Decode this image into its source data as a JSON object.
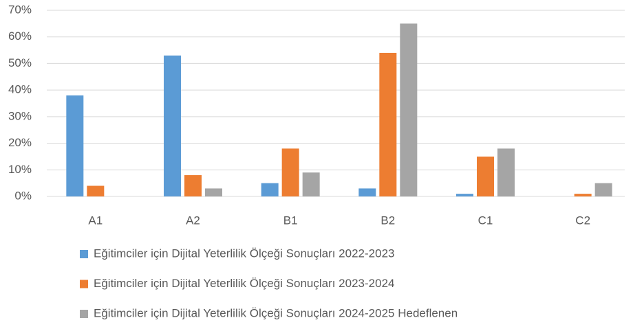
{
  "chart_data": {
    "type": "bar",
    "categories": [
      "A1",
      "A2",
      "B1",
      "B2",
      "C1",
      "C2"
    ],
    "series": [
      {
        "name": "Eğitimciler için Dijital Yeterlilik Ölçeği Sonuçları 2022-2023",
        "color": "#5b9bd5",
        "values": [
          38,
          53,
          5,
          3,
          1,
          0
        ]
      },
      {
        "name": "Eğitimciler için Dijital Yeterlilik Ölçeği Sonuçları 2023-2024",
        "color": "#ed7d31",
        "values": [
          4,
          8,
          18,
          54,
          15,
          1
        ]
      },
      {
        "name": "Eğitimciler için Dijital Yeterlilik Ölçeği Sonuçları 2024-2025 Hedeflenen",
        "color": "#a5a5a5",
        "values": [
          0,
          3,
          9,
          65,
          18,
          5
        ]
      }
    ],
    "ylim": [
      0,
      70
    ],
    "yticks": [
      {
        "value": 0,
        "label": "0%"
      },
      {
        "value": 10,
        "label": "10%"
      },
      {
        "value": 20,
        "label": "20%"
      },
      {
        "value": 30,
        "label": "30%"
      },
      {
        "value": 40,
        "label": "40%"
      },
      {
        "value": 50,
        "label": "50%"
      },
      {
        "value": 60,
        "label": "60%"
      },
      {
        "value": 70,
        "label": "70%"
      }
    ],
    "grid": true,
    "legend": "bottom"
  }
}
